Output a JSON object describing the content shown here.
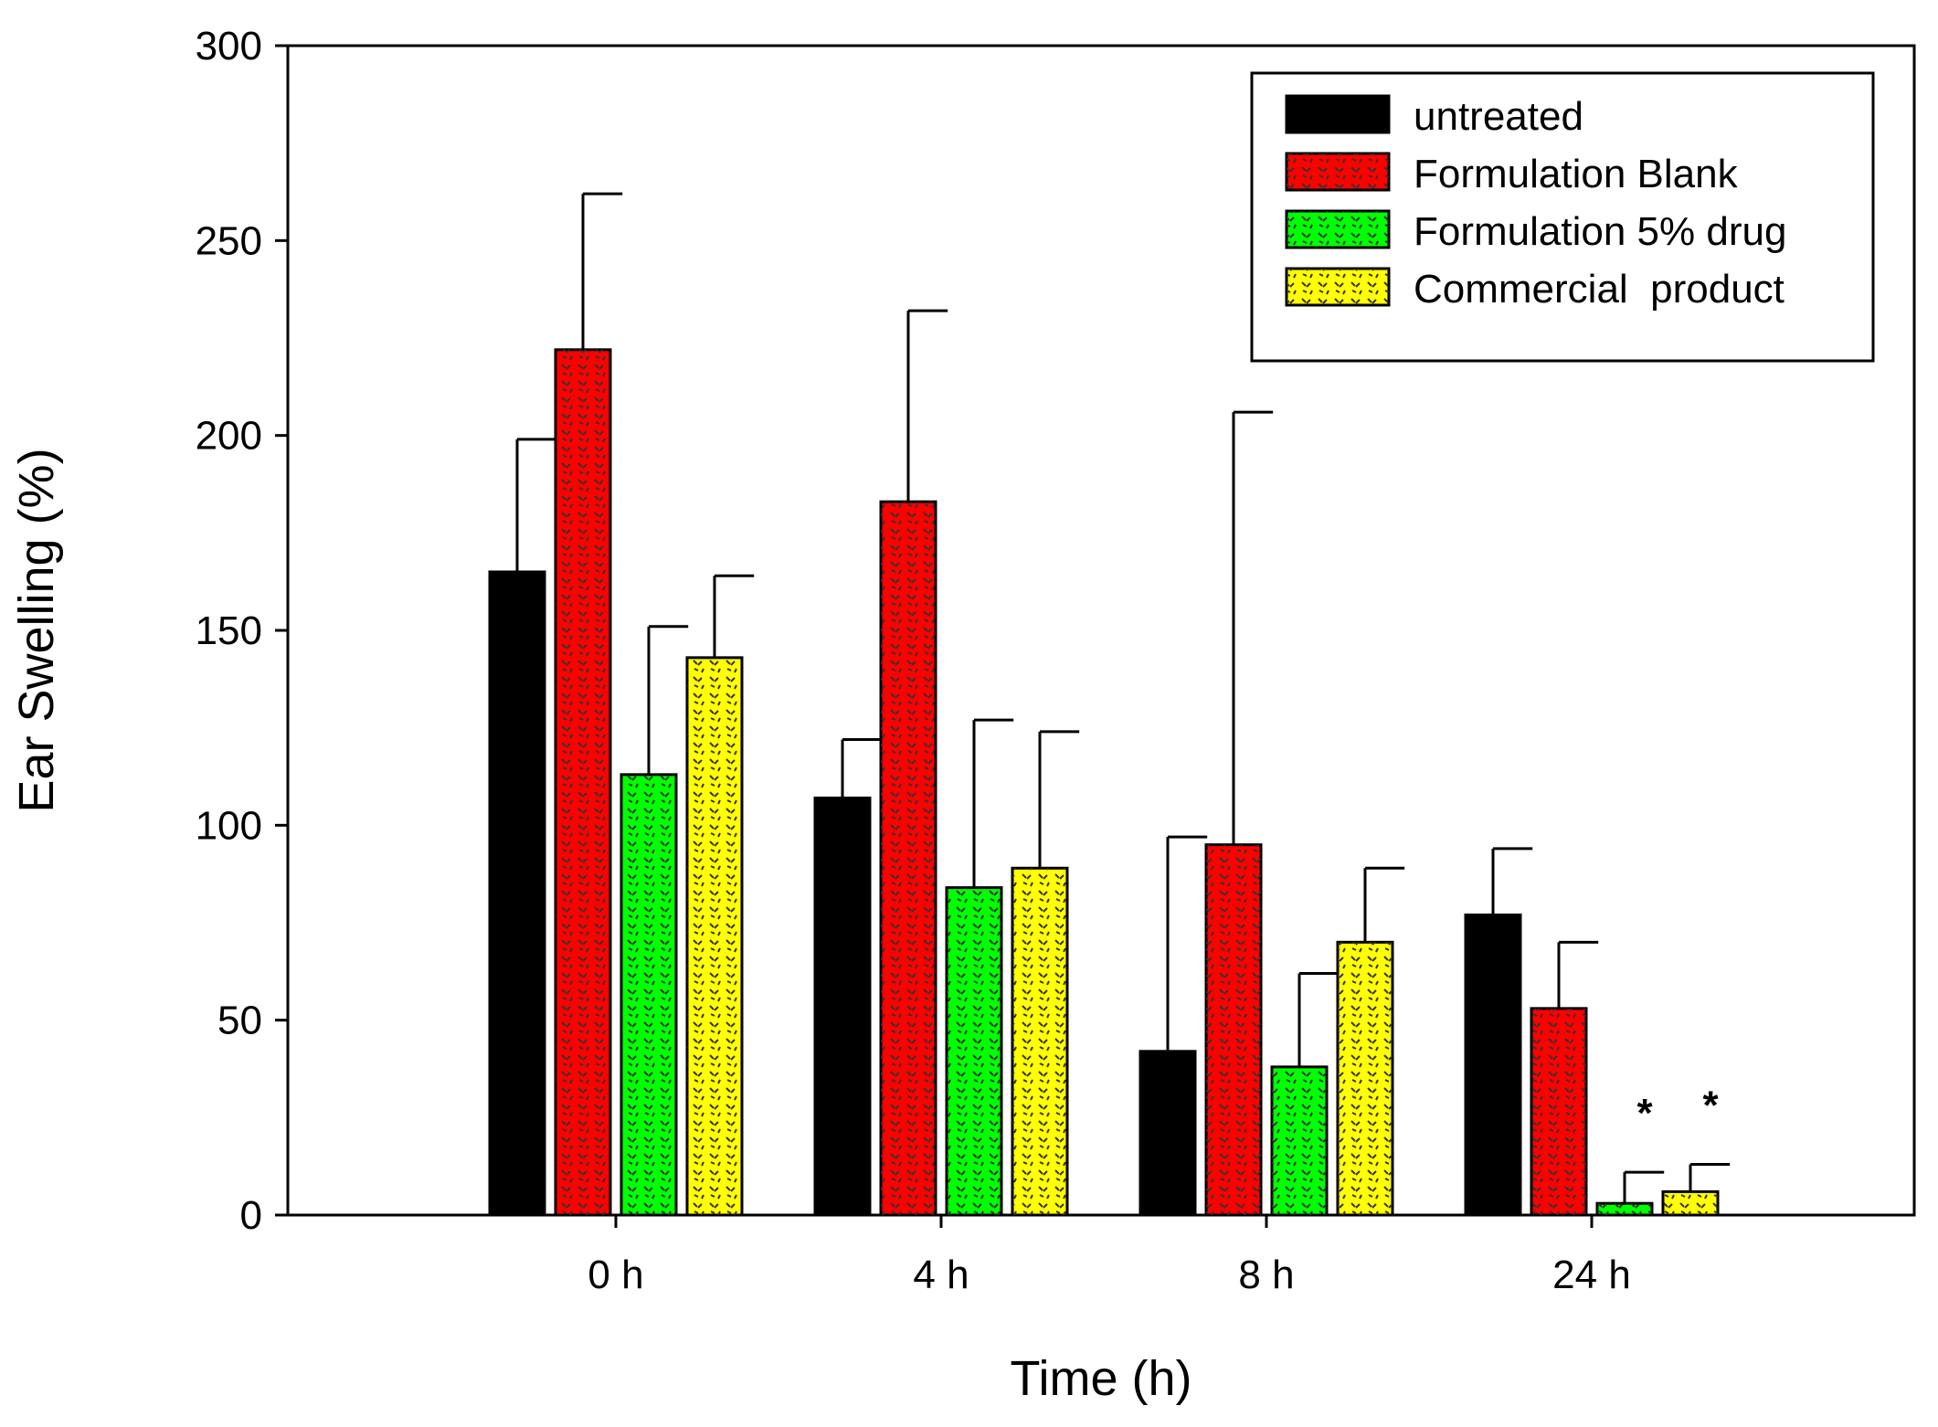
{
  "chart_data": {
    "type": "bar",
    "title": "",
    "xlabel": "Time (h)",
    "ylabel": "Ear Swelling (%)",
    "ylim": [
      0,
      300
    ],
    "yticks": [
      0,
      50,
      100,
      150,
      200,
      250,
      300
    ],
    "grid": false,
    "legend_position": "top-right",
    "categories": [
      "0 h",
      "4 h",
      "8 h",
      "24 h"
    ],
    "series": [
      {
        "name": "untreated",
        "color": "#000000",
        "pattern": "solid",
        "values": [
          165,
          107,
          42,
          77
        ],
        "errors": [
          34,
          15,
          55,
          17
        ],
        "annotations": [
          "",
          "",
          "",
          ""
        ]
      },
      {
        "name": "Formulation Blank",
        "color": "#ff0000",
        "pattern": "dotted",
        "values": [
          222,
          183,
          95,
          53
        ],
        "errors": [
          40,
          49,
          111,
          17
        ],
        "annotations": [
          "",
          "",
          "",
          ""
        ]
      },
      {
        "name": "Formulation 5% drug",
        "color": "#00ff00",
        "pattern": "dotted",
        "values": [
          113,
          84,
          38,
          3
        ],
        "errors": [
          38,
          43,
          24,
          8
        ],
        "annotations": [
          "",
          "",
          "",
          "*"
        ]
      },
      {
        "name": "Commercial  product",
        "color": "#ffff00",
        "pattern": "dotted",
        "values": [
          143,
          89,
          70,
          6
        ],
        "errors": [
          21,
          35,
          19,
          7
        ],
        "annotations": [
          "",
          "",
          "",
          "*"
        ]
      }
    ]
  }
}
